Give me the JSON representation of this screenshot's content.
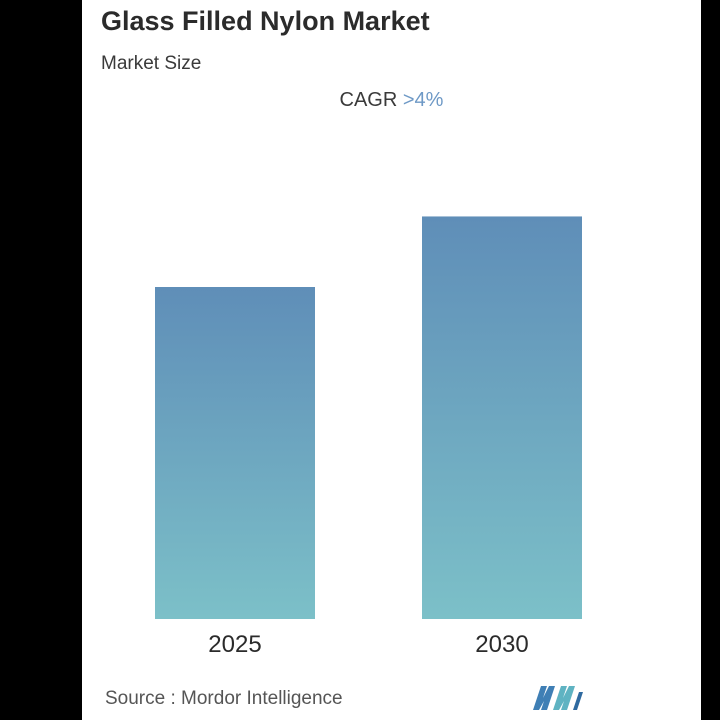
{
  "header": {
    "title": "Glass Filled Nylon Market",
    "subtitle": "Market Size",
    "cagr_label": "CAGR",
    "cagr_value": ">4%"
  },
  "footer": {
    "source": "Source :  Mordor Intelligence",
    "logo_icon": "mordor-intelligence-logo-icon"
  },
  "colors": {
    "bar_top": "#5f8eb8",
    "bar_bottom": "#7cc0c8",
    "cagr_accent": "#6e99c6",
    "frame": "#000000"
  },
  "chart_data": {
    "type": "bar",
    "title": "Glass Filled Nylon Market",
    "subtitle": "Market Size",
    "categories": [
      "2025",
      "2030"
    ],
    "values": [
      0.8,
      0.97
    ],
    "ylim": [
      0,
      1
    ],
    "xlabel": "",
    "ylabel": "",
    "grid": false,
    "legend": "none",
    "annotations": [
      "CAGR >4%"
    ]
  }
}
